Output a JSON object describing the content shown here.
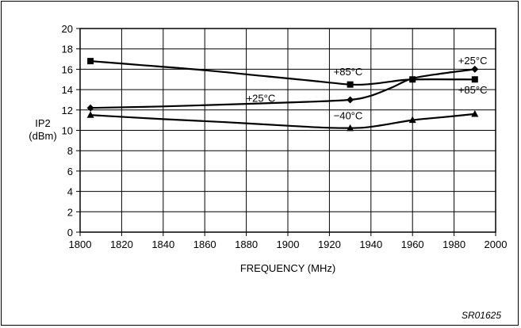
{
  "chart_data": {
    "type": "line",
    "xlabel": "FREQUENCY (MHz)",
    "ylabel": [
      "IP2",
      "(dBm)"
    ],
    "xlim": [
      1800,
      2000
    ],
    "ylim": [
      0,
      20
    ],
    "xticks": [
      1800,
      1820,
      1840,
      1860,
      1880,
      1900,
      1920,
      1940,
      1960,
      1980,
      2000
    ],
    "yticks": [
      0,
      2,
      4,
      6,
      8,
      10,
      12,
      14,
      16,
      18,
      20
    ],
    "grid": true,
    "series": [
      {
        "name": "+85°C",
        "marker": "square",
        "markers": [
          [
            1805,
            16.8
          ],
          [
            1930,
            14.5
          ],
          [
            1960,
            15.0
          ],
          [
            1990,
            15.0
          ]
        ],
        "curve": [
          [
            1805,
            16.8
          ],
          [
            1830,
            16.4
          ],
          [
            1860,
            15.9
          ],
          [
            1890,
            15.3
          ],
          [
            1910,
            14.9
          ],
          [
            1930,
            14.5
          ],
          [
            1940,
            14.55
          ],
          [
            1950,
            14.8
          ],
          [
            1960,
            15.0
          ],
          [
            1990,
            15.0
          ]
        ]
      },
      {
        "name": "+25°C",
        "marker": "diamond",
        "markers": [
          [
            1805,
            12.2
          ],
          [
            1930,
            13.0
          ],
          [
            1990,
            16.0
          ]
        ],
        "curve": [
          [
            1805,
            12.2
          ],
          [
            1840,
            12.35
          ],
          [
            1880,
            12.6
          ],
          [
            1910,
            12.8
          ],
          [
            1930,
            13.0
          ],
          [
            1940,
            13.4
          ],
          [
            1950,
            14.2
          ],
          [
            1960,
            15.1
          ],
          [
            1975,
            15.6
          ],
          [
            1990,
            16.0
          ]
        ]
      },
      {
        "name": "−40°C",
        "marker": "triangle",
        "markers": [
          [
            1805,
            11.5
          ],
          [
            1930,
            10.2
          ],
          [
            1960,
            11.0
          ],
          [
            1990,
            11.6
          ]
        ],
        "curve": [
          [
            1805,
            11.5
          ],
          [
            1840,
            11.1
          ],
          [
            1870,
            10.8
          ],
          [
            1900,
            10.45
          ],
          [
            1920,
            10.25
          ],
          [
            1935,
            10.25
          ],
          [
            1945,
            10.5
          ],
          [
            1960,
            11.0
          ],
          [
            1975,
            11.3
          ],
          [
            1990,
            11.6
          ]
        ]
      }
    ],
    "annotations": [
      {
        "text": "+85°C",
        "x": 1922,
        "y": 15.4
      },
      {
        "text": "+25°C",
        "x": 1880,
        "y": 12.8
      },
      {
        "text": "−40°C",
        "x": 1922,
        "y": 11.1
      },
      {
        "text": "+25°C",
        "x": 1982,
        "y": 16.5
      },
      {
        "text": "+85°C",
        "x": 1982,
        "y": 13.6
      }
    ]
  },
  "figure_code": "SR01625"
}
